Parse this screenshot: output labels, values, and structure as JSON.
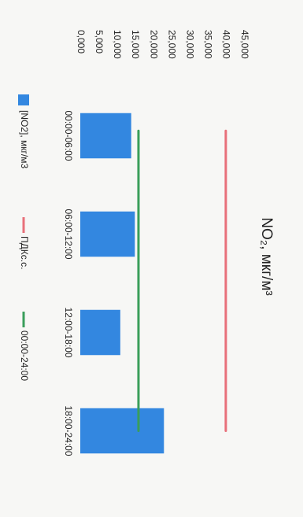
{
  "chart_data": {
    "type": "bar",
    "title": "NO₂, мкг/м³",
    "categories": [
      "00:00-06:00",
      "06:00-12:00",
      "12:00-18:00",
      "18:00-24:00"
    ],
    "series": [
      {
        "name": "[NO2], мкг/м3",
        "kind": "bar",
        "values": [
          14000,
          15000,
          11000,
          23000
        ]
      },
      {
        "name": "ПДКс.с.",
        "kind": "line",
        "values": [
          40000,
          40000,
          40000,
          40000
        ]
      },
      {
        "name": "00:00-24:00",
        "kind": "line",
        "values": [
          16000,
          16000,
          16000,
          16000
        ]
      }
    ],
    "ylim": [
      0,
      45000
    ],
    "yticks": [
      "0,000",
      "5,000",
      "10,000",
      "15,000",
      "20,000",
      "25,000",
      "30,000",
      "35,000",
      "40,000",
      "45,000"
    ],
    "grid": false,
    "legend_position": "bottom",
    "colors": {
      "bar": "#3387e0",
      "pdk_line": "#e8707a",
      "avg_line": "#3a9e5a"
    }
  }
}
